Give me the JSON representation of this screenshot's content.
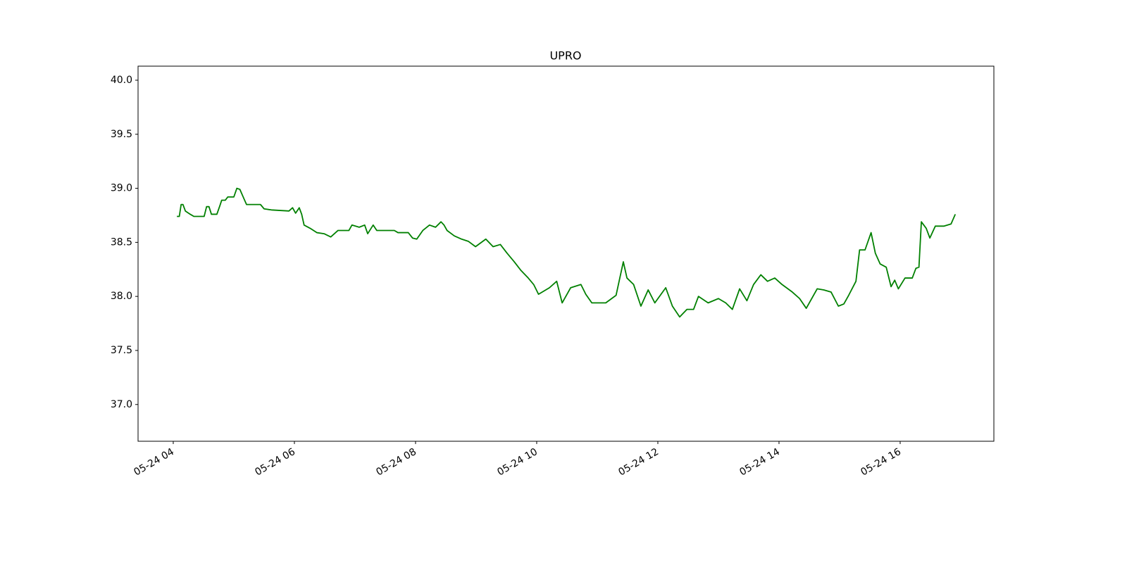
{
  "chart_data": {
    "type": "line",
    "title": "UPRO",
    "x": [
      4.06,
      4.1,
      4.13,
      4.16,
      4.2,
      4.28,
      4.34,
      4.51,
      4.55,
      4.59,
      4.63,
      4.72,
      4.77,
      4.8,
      4.86,
      4.9,
      5.0,
      5.05,
      5.1,
      5.17,
      5.21,
      5.44,
      5.5,
      5.62,
      5.91,
      5.97,
      6.02,
      6.08,
      6.12,
      6.16,
      6.26,
      6.37,
      6.49,
      6.6,
      6.72,
      6.9,
      6.95,
      7.07,
      7.16,
      7.21,
      7.3,
      7.36,
      7.65,
      7.71,
      7.88,
      7.95,
      8.02,
      8.12,
      8.23,
      8.33,
      8.42,
      8.47,
      8.52,
      8.64,
      8.76,
      8.87,
      8.99,
      9.16,
      9.28,
      9.4,
      9.51,
      9.63,
      9.74,
      9.86,
      9.95,
      10.03,
      10.21,
      10.33,
      10.42,
      10.56,
      10.73,
      10.81,
      10.91,
      11.14,
      11.31,
      11.43,
      11.49,
      11.6,
      11.72,
      11.84,
      11.95,
      12.13,
      12.24,
      12.36,
      12.48,
      12.59,
      12.67,
      12.83,
      13.0,
      13.12,
      13.23,
      13.35,
      13.47,
      13.58,
      13.7,
      13.81,
      13.93,
      14.05,
      14.22,
      14.34,
      14.45,
      14.63,
      14.74,
      14.86,
      14.98,
      15.07,
      15.15,
      15.27,
      15.33,
      15.42,
      15.52,
      15.59,
      15.67,
      15.77,
      15.85,
      15.91,
      15.97,
      16.08,
      16.2,
      16.26,
      16.31,
      16.35,
      16.43,
      16.49,
      16.58,
      16.72,
      16.84,
      16.91
    ],
    "series": [
      {
        "name": "UPRO",
        "color": "#008000",
        "values": [
          38.74,
          38.74,
          38.85,
          38.85,
          38.79,
          38.76,
          38.74,
          38.74,
          38.83,
          38.83,
          38.76,
          38.76,
          38.84,
          38.89,
          38.89,
          38.92,
          38.92,
          39.0,
          38.99,
          38.9,
          38.85,
          38.85,
          38.81,
          38.8,
          38.79,
          38.82,
          38.77,
          38.82,
          38.76,
          38.66,
          38.63,
          38.59,
          38.58,
          38.55,
          38.61,
          38.61,
          38.66,
          38.64,
          38.66,
          38.58,
          38.66,
          38.61,
          38.61,
          38.59,
          38.59,
          38.54,
          38.53,
          38.61,
          38.66,
          38.64,
          38.69,
          38.66,
          38.61,
          38.56,
          38.53,
          38.51,
          38.46,
          38.53,
          38.46,
          38.48,
          38.4,
          38.32,
          38.24,
          38.17,
          38.11,
          38.02,
          38.08,
          38.14,
          37.94,
          38.08,
          38.11,
          38.02,
          37.94,
          37.94,
          38.01,
          38.32,
          38.17,
          38.11,
          37.91,
          38.06,
          37.94,
          38.08,
          37.91,
          37.81,
          37.88,
          37.88,
          38.0,
          37.94,
          37.98,
          37.94,
          37.88,
          38.07,
          37.96,
          38.11,
          38.2,
          38.14,
          38.17,
          38.11,
          38.04,
          37.98,
          37.89,
          38.07,
          38.06,
          38.04,
          37.91,
          37.93,
          38.01,
          38.14,
          38.43,
          38.43,
          38.59,
          38.4,
          38.3,
          38.27,
          38.09,
          38.15,
          38.07,
          38.17,
          38.17,
          38.26,
          38.27,
          38.69,
          38.63,
          38.54,
          38.65,
          38.65,
          38.67,
          38.76
        ]
      }
    ],
    "xlim": [
      3.419,
      17.547
    ],
    "xticks": [
      {
        "value": 4,
        "label": "05-24 04"
      },
      {
        "value": 6,
        "label": "05-24 06"
      },
      {
        "value": 8,
        "label": "05-24 08"
      },
      {
        "value": 10,
        "label": "05-24 10"
      },
      {
        "value": 12,
        "label": "05-24 12"
      },
      {
        "value": 14,
        "label": "05-24 14"
      },
      {
        "value": 16,
        "label": "05-24 16"
      }
    ],
    "ylim": [
      36.66,
      40.13
    ],
    "yticks": [
      {
        "value": 37,
        "label": "37.0"
      },
      37.5,
      {
        "value": 38,
        "label": "38.0"
      },
      38.5,
      {
        "value": 39,
        "label": "39.0"
      },
      39.5,
      {
        "value": 40,
        "label": "40.0"
      }
    ],
    "grid": false
  }
}
